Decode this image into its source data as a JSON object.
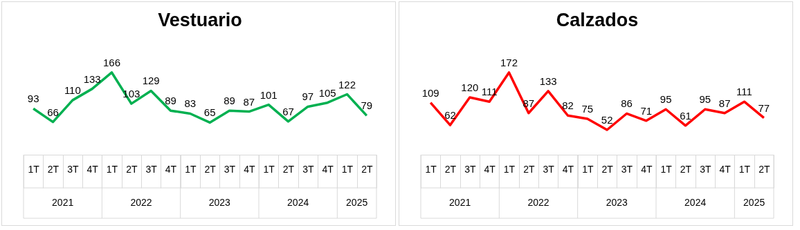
{
  "chart_data": [
    {
      "type": "line",
      "title": "Vestuario",
      "categories": [
        "1T",
        "2T",
        "3T",
        "4T",
        "1T",
        "2T",
        "3T",
        "4T",
        "1T",
        "2T",
        "3T",
        "4T",
        "1T",
        "2T",
        "3T",
        "4T",
        "1T",
        "2T"
      ],
      "series": [
        {
          "color": "#00b050",
          "values": [
            93,
            66,
            110,
            133,
            166,
            103,
            129,
            89,
            83,
            65,
            89,
            87,
            101,
            67,
            97,
            105,
            122,
            79
          ]
        }
      ],
      "data_labels": true,
      "marker": "none",
      "annotations": [
        "2021",
        "2022",
        "2023",
        "2024",
        "2025"
      ]
    },
    {
      "type": "line",
      "title": "Calzados",
      "categories": [
        "1T",
        "2T",
        "3T",
        "4T",
        "1T",
        "2T",
        "3T",
        "4T",
        "1T",
        "2T",
        "3T",
        "4T",
        "1T",
        "2T",
        "3T",
        "4T",
        "1T",
        "2T"
      ],
      "series": [
        {
          "color": "#ff0000",
          "values": [
            109,
            62,
            120,
            111,
            172,
            87,
            133,
            82,
            75,
            52,
            86,
            71,
            95,
            61,
            95,
            87,
            111,
            77
          ]
        }
      ],
      "data_labels": true,
      "marker": "none",
      "annotations": [
        "2021",
        "2022",
        "2023",
        "2024",
        "2025"
      ]
    }
  ]
}
